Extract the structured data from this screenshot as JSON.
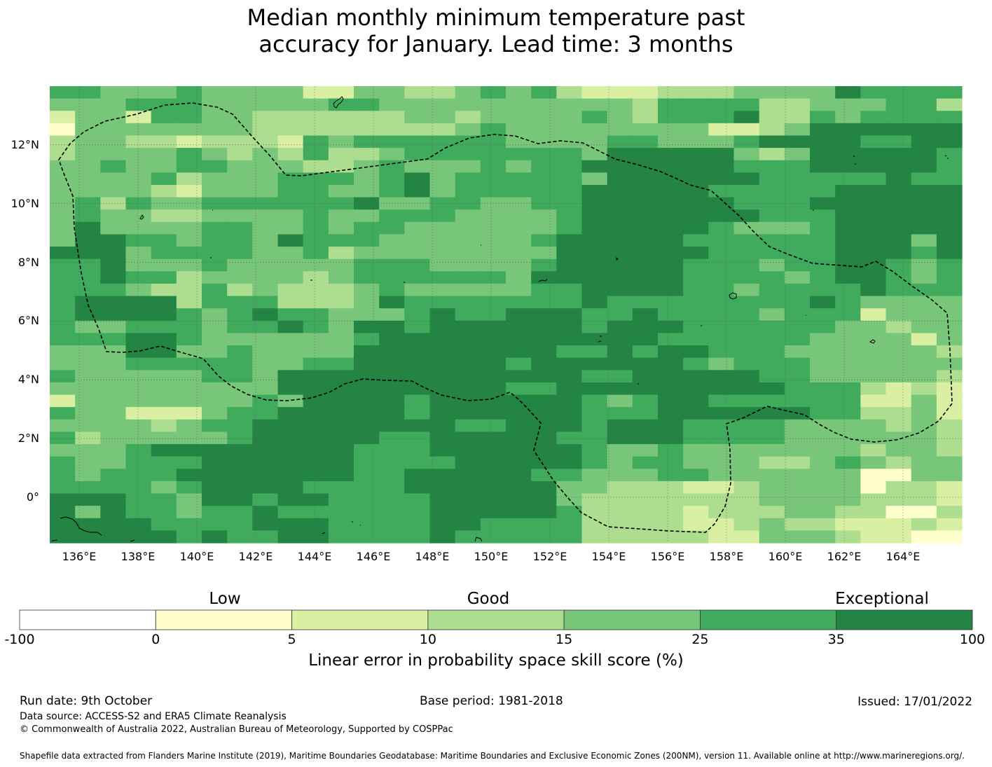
{
  "title": {
    "line1": "Median monthly minimum temperature past",
    "line2": "accuracy for January. Lead time: 3 months"
  },
  "map": {
    "x_ticks": [
      "136°E",
      "138°E",
      "140°E",
      "142°E",
      "144°E",
      "146°E",
      "148°E",
      "150°E",
      "152°E",
      "154°E",
      "156°E",
      "158°E",
      "160°E",
      "162°E",
      "164°E"
    ],
    "y_ticks": [
      "12°N",
      "10°N",
      "8°N",
      "6°N",
      "4°N",
      "2°N",
      "0°"
    ],
    "x_range_deg_e": [
      135.0,
      166.0
    ],
    "y_range_deg_n": [
      -1.55,
      14.0
    ],
    "grid_colors": {
      "c0": "#ffffff",
      "c1": "#ffffcc",
      "c2": "#d9f0a3",
      "c3": "#addd8e",
      "c4": "#78c679",
      "c5": "#41ab5d",
      "c6": "#238443"
    },
    "grid_rows": [
      "554445444422443345453222333444465555",
      "444555444445544444444443555533444553",
      "244255443333334434444543555633545555",
      "144444443333333345444444442234666666",
      "344332333254555555444455444566665566",
      "344445434353345555555466666434666665",
      "445445544433454445455666666555666665",
      "444453444555456455555466666655555655",
      "444432444554456455555666665555566666",
      "453544555555644554455666666555666666",
      "454433444454455544445666666655566666",
      "464444554454554444445666665444566666",
      "466554554655544444456666655555566646",
      "666455554453444444446666665555566656",
      "556444544444555444456666655545566545",
      "556553444434555555466666655554566545",
      "555433534333454444455666655455556555",
      "566663555333465555555655555555654444",
      "566665456554445655666556555545552444",
      "544555455654665666666566655555544344",
      "555665444444566666666666555555444424",
      "444664454444666666665565665554444443",
      "444555554455666666566666654555444444",
      "544444554666666666666556666655444443",
      "444444444666666666556666666665553232",
      "244444445466665666666545665555552242",
      "544222455666665666666555666666553342",
      "444434556666666655666566655554444343",
      "534444456666655666665566655554444443",
      "444566666666555666666544544444443443",
      "544555666666555566666545544433454344",
      "545556666666556666655444554444441144",
      "555545666655556666664433322344441332",
      "666554665665555666664333333344443332",
      "646554556555555666665333323334433113",
      "666655556665555665555333322343322232",
      "666665655665555655555333332244432211"
    ]
  },
  "colorbar": {
    "categories": {
      "low": "Low",
      "good": "Good",
      "exceptional": "Exceptional"
    },
    "ticks": [
      "-100",
      "0",
      "5",
      "10",
      "15",
      "25",
      "35",
      "100"
    ],
    "colors": [
      "#ffffff",
      "#ffffcc",
      "#d9f0a3",
      "#addd8e",
      "#78c679",
      "#41ab5d",
      "#238443"
    ],
    "label": "Linear error in probability space skill score (%)"
  },
  "footer": {
    "run_date": "Run date: 9th October",
    "base_period": "Base period: 1981-2018",
    "issued": "Issued: 17/01/2022",
    "data_source": "Data source: ACCESS-S2 and ERA5 Climate Reanalysis",
    "copyright": "© Commonwealth of Australia 2022, Australian Bureau of Meteorology, Supported by COSPPac",
    "shapefile": "Shapefile data extracted from Flanders Marine Institute (2019), Maritime Boundaries Geodatabase: Maritime Boundaries and Exclusive Economic Zones (200NM), version 11. Available online at http://www.marineregions.org/."
  }
}
